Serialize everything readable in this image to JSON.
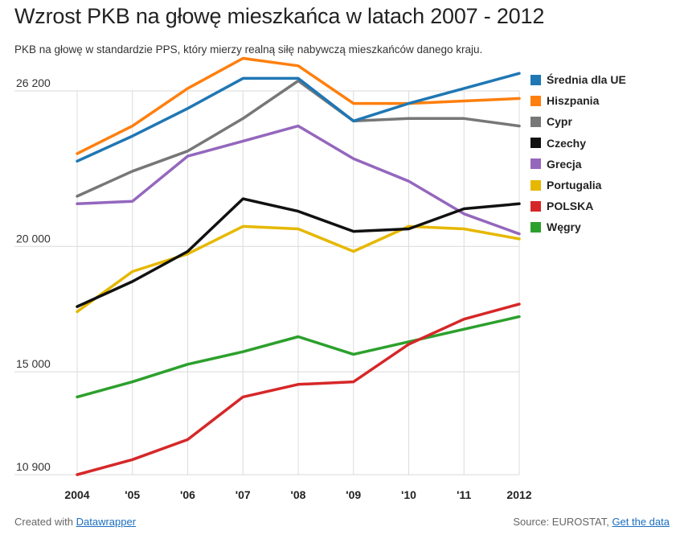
{
  "header": {
    "title": "Wzrost PKB na głowę mieszkańca w latach 2007 - 2012",
    "subtitle": "PKB na głowę w standardzie PPS, który mierzy realną siłę nabywczą mieszkańców danego kraju."
  },
  "footer": {
    "created_prefix": "Created with",
    "created_link": "Datawrapper",
    "source_text": "Source: EUROSTAT,",
    "source_link": "Get the data"
  },
  "chart_data": {
    "type": "line",
    "title": "Wzrost PKB na głowę mieszkańca w latach 2007 - 2012",
    "subtitle": "PKB na głowę w standardzie PPS, który mierzy realną siłę nabywczą mieszkańców danego kraju.",
    "categories": [
      "2004",
      "'05",
      "'06",
      "'07",
      "'08",
      "'09",
      "'10",
      "'11",
      "2012"
    ],
    "y_ticks": [
      10900,
      15000,
      20000,
      26200
    ],
    "y_tick_labels": [
      "10 900",
      "15 000",
      "20 000",
      "26 200"
    ],
    "ylim": [
      10900,
      26200
    ],
    "grid": true,
    "legend_position": "right",
    "series": [
      {
        "name": "Średnia dla UE",
        "color": "#1f77b4",
        "values": [
          23400,
          24400,
          25500,
          26700,
          26700,
          25000,
          25700,
          26300,
          26900
        ]
      },
      {
        "name": "Hiszpania",
        "color": "#ff7f0e",
        "values": [
          23700,
          24800,
          26300,
          27500,
          27200,
          25700,
          25700,
          25800,
          25900
        ]
      },
      {
        "name": "Cypr",
        "color": "#777777",
        "values": [
          22000,
          23000,
          23800,
          25100,
          26600,
          25000,
          25100,
          25100,
          24800
        ]
      },
      {
        "name": "Czechy",
        "color": "#111111",
        "values": [
          17600,
          18600,
          19800,
          21900,
          21400,
          20600,
          20700,
          21500,
          21700
        ]
      },
      {
        "name": "Grecja",
        "color": "#9467bd",
        "values": [
          21700,
          21800,
          23600,
          24200,
          24800,
          23500,
          22600,
          21300,
          20500
        ]
      },
      {
        "name": "Portugalia",
        "color": "#e6b800",
        "values": [
          17400,
          19000,
          19700,
          20800,
          20700,
          19800,
          20800,
          20700,
          20300
        ]
      },
      {
        "name": "POLSKA",
        "color": "#d62728",
        "values": [
          10900,
          11500,
          12300,
          14000,
          14500,
          14600,
          16100,
          17100,
          17700
        ]
      },
      {
        "name": "Węgry",
        "color": "#2ca02c",
        "values": [
          14000,
          14600,
          15300,
          15800,
          16400,
          15700,
          16200,
          16700,
          17200
        ]
      }
    ]
  }
}
